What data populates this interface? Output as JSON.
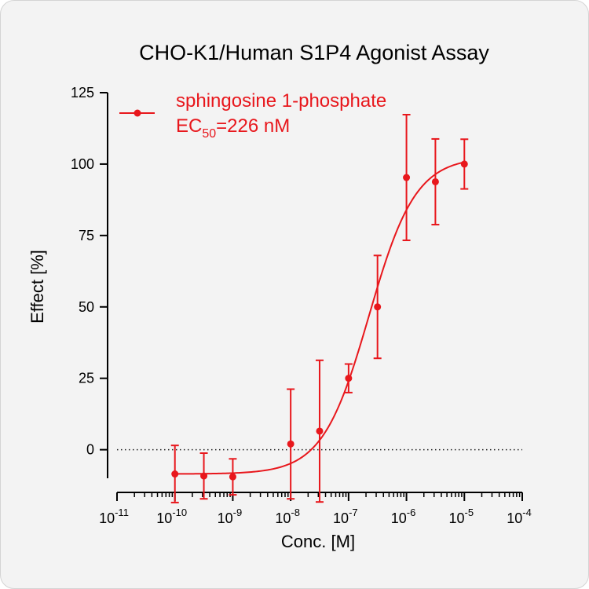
{
  "chart_data": {
    "type": "scatter",
    "title": "CHO-K1/Human S1P4 Agonist Assay",
    "xlabel": "Conc. [M]",
    "ylabel": "Effect  [%]",
    "x_scale": "log",
    "xlim": [
      1e-11,
      0.0001
    ],
    "ylim": [
      -10,
      125
    ],
    "x_ticks": [
      {
        "base": "10",
        "exp": "-11"
      },
      {
        "base": "10",
        "exp": "-10"
      },
      {
        "base": "10",
        "exp": "-9"
      },
      {
        "base": "10",
        "exp": "-8"
      },
      {
        "base": "10",
        "exp": "-7"
      },
      {
        "base": "10",
        "exp": "-6"
      },
      {
        "base": "10",
        "exp": "-5"
      },
      {
        "base": "10",
        "exp": "-4"
      }
    ],
    "y_ticks": [
      "0",
      "25",
      "50",
      "75",
      "100",
      "125"
    ],
    "y_tick_values": [
      0,
      25,
      50,
      75,
      100,
      125
    ],
    "zero_line": "dotted",
    "grid": false,
    "legend_position": "top-left",
    "series": [
      {
        "name": "sphingosine 1-phosphate",
        "color": "#e8171c",
        "x": [
          1e-10,
          3.16e-10,
          1e-09,
          1e-08,
          3.16e-08,
          1e-07,
          3.16e-07,
          1e-06,
          3.16e-06,
          1e-05
        ],
        "y": [
          -8.5,
          -9.2,
          -9.5,
          2,
          6.5,
          25,
          50,
          95.3,
          93.8,
          100
        ],
        "error": [
          10,
          8,
          6.3,
          19.2,
          24.8,
          5,
          18,
          22,
          15,
          8.7
        ],
        "fit": {
          "model": "4PL",
          "bottom": -8.5,
          "top": 102.5,
          "ec50": 2.26e-07,
          "hill": 1.08
        }
      }
    ],
    "legend": {
      "label": "sphingosine 1-phosphate",
      "ec50_prefix": "EC",
      "ec50_sub": "50",
      "ec50_value": "=226 nM"
    }
  }
}
